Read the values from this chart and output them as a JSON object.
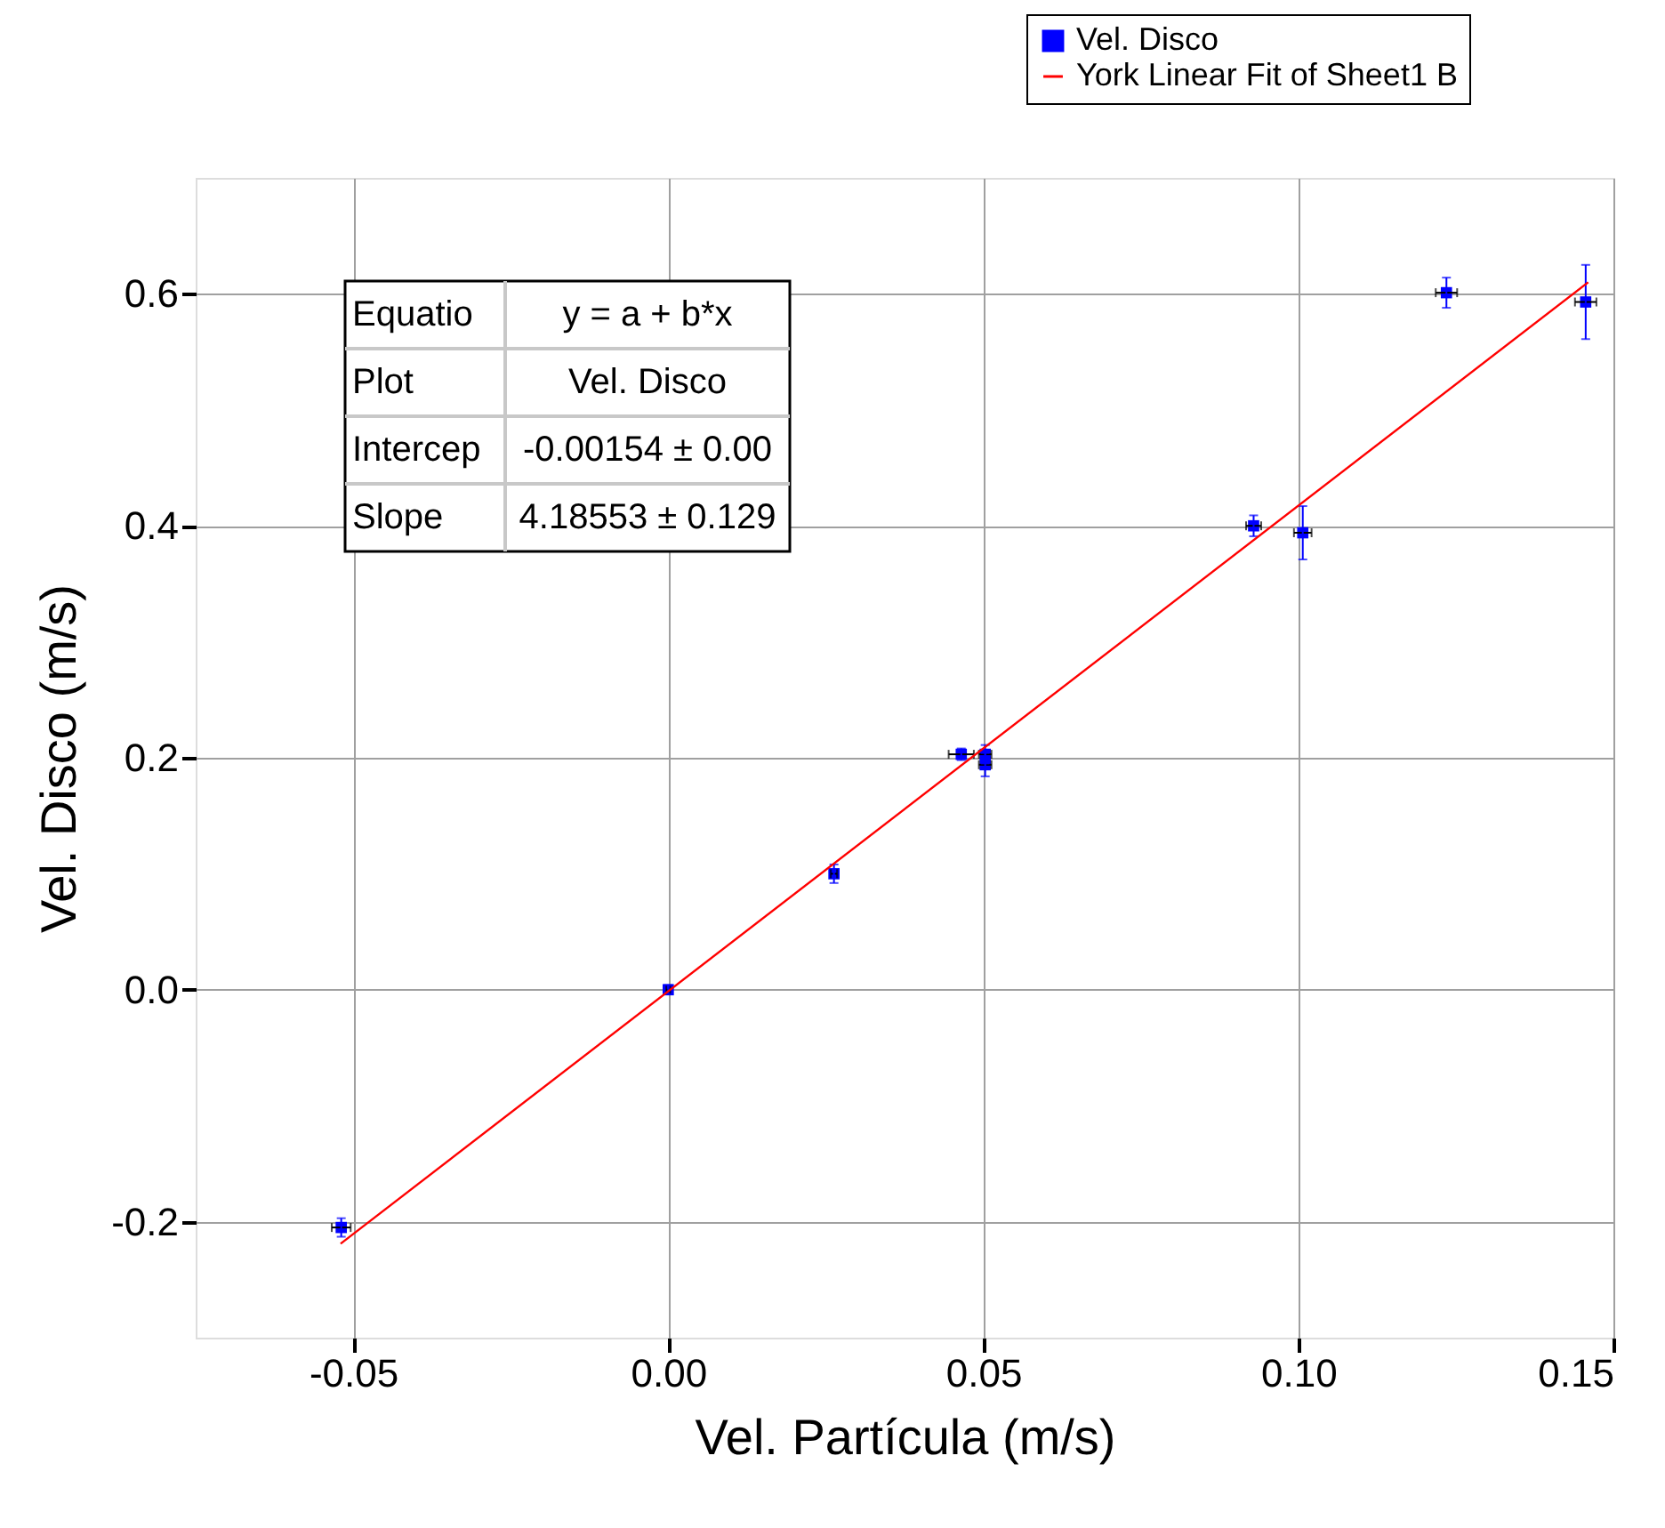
{
  "chart_data": {
    "type": "scatter",
    "xlabel": "Vel. Partícula (m/s)",
    "ylabel": "Vel. Disco (m/s)",
    "xlim": [
      -0.075,
      0.15
    ],
    "ylim": [
      -0.3,
      0.7
    ],
    "xticks": [
      {
        "value": -0.05,
        "label": "-0.05"
      },
      {
        "value": 0,
        "label": "0.00"
      },
      {
        "value": 0.05,
        "label": "0.05"
      },
      {
        "value": 0.1,
        "label": "0.10"
      },
      {
        "value": 0.15,
        "label": "0.15"
      }
    ],
    "yticks": [
      {
        "value": -0.2,
        "label": "-0.2"
      },
      {
        "value": 0,
        "label": "0.0"
      },
      {
        "value": 0.2,
        "label": "0.2"
      },
      {
        "value": 0.4,
        "label": "0.4"
      },
      {
        "value": 0.6,
        "label": "0.6"
      }
    ],
    "grid": true,
    "legend": "top right",
    "series": [
      {
        "name": "Vel. Disco",
        "marker": "square",
        "color": "#0000ff",
        "x": [
          -0.0519,
          0,
          0.0263,
          0.0465,
          0.0503,
          0.0503,
          0.0929,
          0.1007,
          0.1235,
          0.1456
        ],
        "values": [
          -0.205,
          0,
          0.1,
          0.203,
          0.203,
          0.194,
          0.4,
          0.394,
          0.601,
          0.593
        ],
        "errors": [
          0.008,
          0.004,
          0.008,
          0.005,
          0.008,
          0.01,
          0.009,
          0.023,
          0.013,
          0.032
        ],
        "xerrors": [
          0.0015,
          0.0003,
          0.0005,
          0.002,
          0.001,
          0.001,
          0.0012,
          0.0014,
          0.0017,
          0.0017
        ]
      },
      {
        "name": "York Linear Fit of Sheet1 B",
        "type": "line",
        "color": "#ff0000",
        "x": [
          -0.052,
          0.146
        ],
        "values": [
          -0.219,
          0.61
        ]
      }
    ],
    "annotations": [
      "Equatio",
      "y = a + b*x",
      "Plot",
      "Vel. Disco",
      "Intercep",
      "-0.00154 ± 0.00",
      "Slope",
      "4.18553 ± 0.129"
    ]
  }
}
